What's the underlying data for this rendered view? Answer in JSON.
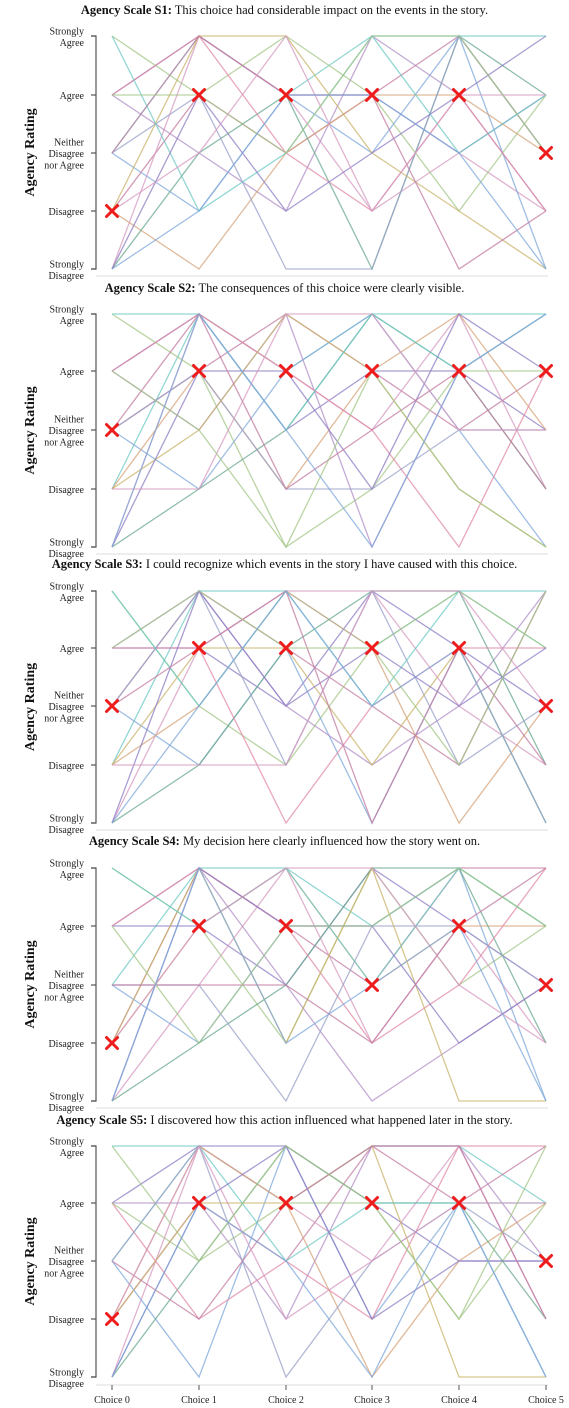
{
  "chart_data": {
    "type": "line",
    "ylabel": "Agency Rating",
    "categories": [
      "Choice 0",
      "Choice 1",
      "Choice 2",
      "Choice 3",
      "Choice 4",
      "Choice 5"
    ],
    "levels": [
      [
        "Strongly",
        "Agree"
      ],
      [
        "Agree"
      ],
      [
        "Neither",
        "Disagree",
        "nor Agree"
      ],
      [
        "Disagree"
      ],
      [
        "Strongly",
        "Disagree"
      ]
    ],
    "marker_color": "#ee1c1c",
    "line_palette": [
      "#6fc9c4",
      "#8e7cc3",
      "#c27ba0",
      "#d59ac0",
      "#a3c585",
      "#7fa8d9",
      "#b08fc7",
      "#d6a37a",
      "#6aa88f",
      "#e08aa6",
      "#9aa0c8",
      "#c9b36b"
    ],
    "panels": [
      {
        "prefix": "Agency Scale S1:",
        "text": "This choice had considerable impact on the events in the story.",
        "highlight": [
          2,
          4,
          4,
          4,
          4,
          3
        ],
        "lines": [
          [
            3,
            5,
            4,
            5,
            5,
            5
          ],
          [
            4,
            5,
            4,
            4,
            3,
            4
          ],
          [
            2,
            4,
            3,
            4,
            5,
            3
          ],
          [
            1,
            5,
            4,
            2,
            3,
            2
          ],
          [
            5,
            4,
            5,
            4,
            2,
            4
          ],
          [
            3,
            2,
            4,
            3,
            5,
            1
          ],
          [
            4,
            3,
            2,
            5,
            4,
            2
          ],
          [
            2,
            1,
            3,
            4,
            4,
            3
          ],
          [
            1,
            3,
            4,
            1,
            5,
            4
          ],
          [
            4,
            5,
            3,
            2,
            4,
            2
          ],
          [
            3,
            4,
            1,
            1,
            5,
            3
          ],
          [
            2,
            5,
            5,
            3,
            2,
            1
          ],
          [
            5,
            2,
            3,
            5,
            3,
            4
          ],
          [
            1,
            4,
            2,
            3,
            4,
            5
          ],
          [
            3,
            5,
            4,
            4,
            1,
            2
          ],
          [
            2,
            3,
            5,
            2,
            4,
            4
          ],
          [
            4,
            4,
            3,
            5,
            5,
            3
          ],
          [
            1,
            2,
            4,
            4,
            3,
            1
          ]
        ]
      },
      {
        "prefix": "Agency Scale S2:",
        "text": "The consequences of this choice were clearly visible.",
        "highlight": [
          3,
          4,
          4,
          4,
          4,
          4
        ],
        "lines": [
          [
            2,
            5,
            4,
            5,
            5,
            5
          ],
          [
            4,
            5,
            3,
            4,
            4,
            3
          ],
          [
            3,
            4,
            5,
            4,
            3,
            4
          ],
          [
            1,
            5,
            4,
            3,
            5,
            2
          ],
          [
            5,
            4,
            1,
            2,
            4,
            4
          ],
          [
            3,
            2,
            4,
            5,
            3,
            1
          ],
          [
            4,
            3,
            5,
            1,
            4,
            5
          ],
          [
            2,
            4,
            2,
            4,
            5,
            3
          ],
          [
            1,
            2,
            3,
            5,
            4,
            2
          ],
          [
            4,
            5,
            4,
            3,
            1,
            4
          ],
          [
            3,
            4,
            2,
            2,
            3,
            3
          ],
          [
            2,
            3,
            5,
            4,
            2,
            1
          ],
          [
            5,
            5,
            3,
            5,
            4,
            5
          ],
          [
            1,
            4,
            4,
            2,
            5,
            4
          ],
          [
            3,
            5,
            2,
            3,
            4,
            2
          ],
          [
            2,
            2,
            5,
            5,
            3,
            3
          ],
          [
            4,
            3,
            1,
            4,
            2,
            1
          ],
          [
            1,
            5,
            3,
            1,
            4,
            5
          ]
        ]
      },
      {
        "prefix": "Agency Scale S3:",
        "text": "I could recognize which events in the story I have caused with this choice.",
        "highlight": [
          3,
          4,
          4,
          4,
          4,
          3
        ],
        "lines": [
          [
            2,
            5,
            5,
            4,
            5,
            4
          ],
          [
            4,
            4,
            3,
            5,
            4,
            3
          ],
          [
            3,
            5,
            4,
            3,
            2,
            5
          ],
          [
            1,
            4,
            5,
            5,
            3,
            2
          ],
          [
            5,
            3,
            2,
            4,
            5,
            4
          ],
          [
            3,
            2,
            4,
            1,
            4,
            1
          ],
          [
            4,
            5,
            3,
            2,
            3,
            5
          ],
          [
            2,
            3,
            5,
            4,
            1,
            3
          ],
          [
            1,
            2,
            4,
            5,
            5,
            2
          ],
          [
            4,
            4,
            1,
            3,
            4,
            4
          ],
          [
            3,
            5,
            2,
            5,
            2,
            3
          ],
          [
            2,
            4,
            4,
            2,
            4,
            1
          ],
          [
            5,
            3,
            5,
            3,
            5,
            5
          ],
          [
            1,
            5,
            3,
            4,
            3,
            4
          ],
          [
            3,
            4,
            5,
            1,
            4,
            2
          ],
          [
            2,
            2,
            2,
            5,
            5,
            3
          ],
          [
            4,
            5,
            4,
            4,
            2,
            5
          ],
          [
            1,
            3,
            5,
            3,
            4,
            1
          ]
        ]
      },
      {
        "prefix": "Agency Scale S4:",
        "text": "My decision here clearly influenced how the story went on.",
        "highlight": [
          2,
          4,
          4,
          3,
          4,
          3
        ],
        "lines": [
          [
            3,
            5,
            5,
            4,
            5,
            4
          ],
          [
            4,
            4,
            3,
            5,
            4,
            3
          ],
          [
            2,
            5,
            4,
            3,
            5,
            5
          ],
          [
            1,
            3,
            5,
            2,
            4,
            2
          ],
          [
            5,
            4,
            2,
            5,
            3,
            4
          ],
          [
            3,
            2,
            4,
            4,
            5,
            1
          ],
          [
            4,
            5,
            3,
            1,
            2,
            3
          ],
          [
            2,
            4,
            5,
            3,
            4,
            4
          ],
          [
            1,
            2,
            3,
            5,
            5,
            2
          ],
          [
            4,
            5,
            4,
            2,
            3,
            5
          ],
          [
            3,
            3,
            1,
            4,
            4,
            3
          ],
          [
            2,
            5,
            2,
            5,
            1,
            1
          ],
          [
            5,
            4,
            5,
            3,
            5,
            4
          ],
          [
            1,
            5,
            4,
            4,
            2,
            3
          ],
          [
            3,
            3,
            3,
            2,
            4,
            5
          ],
          [
            2,
            4,
            5,
            5,
            3,
            2
          ],
          [
            4,
            2,
            4,
            4,
            5,
            4
          ],
          [
            1,
            5,
            2,
            3,
            4,
            1
          ]
        ]
      },
      {
        "prefix": "Agency Scale S5:",
        "text": "I discovered how this action influenced what happened later in the story.",
        "highlight": [
          2,
          4,
          4,
          4,
          4,
          3
        ],
        "lines": [
          [
            3,
            5,
            4,
            5,
            5,
            4
          ],
          [
            4,
            5,
            5,
            4,
            3,
            3
          ],
          [
            2,
            4,
            3,
            5,
            4,
            5
          ],
          [
            1,
            5,
            4,
            3,
            5,
            2
          ],
          [
            5,
            3,
            4,
            4,
            2,
            4
          ],
          [
            3,
            1,
            5,
            2,
            4,
            1
          ],
          [
            4,
            4,
            2,
            5,
            5,
            3
          ],
          [
            2,
            5,
            4,
            1,
            3,
            4
          ],
          [
            1,
            3,
            5,
            4,
            4,
            2
          ],
          [
            4,
            2,
            3,
            2,
            5,
            5
          ],
          [
            3,
            5,
            1,
            3,
            4,
            3
          ],
          [
            2,
            4,
            4,
            5,
            1,
            1
          ],
          [
            5,
            5,
            3,
            4,
            4,
            4
          ],
          [
            1,
            4,
            5,
            2,
            3,
            3
          ],
          [
            3,
            2,
            4,
            5,
            5,
            2
          ],
          [
            2,
            5,
            2,
            3,
            4,
            4
          ],
          [
            4,
            3,
            5,
            4,
            2,
            5
          ],
          [
            1,
            4,
            3,
            1,
            4,
            1
          ]
        ]
      }
    ]
  }
}
